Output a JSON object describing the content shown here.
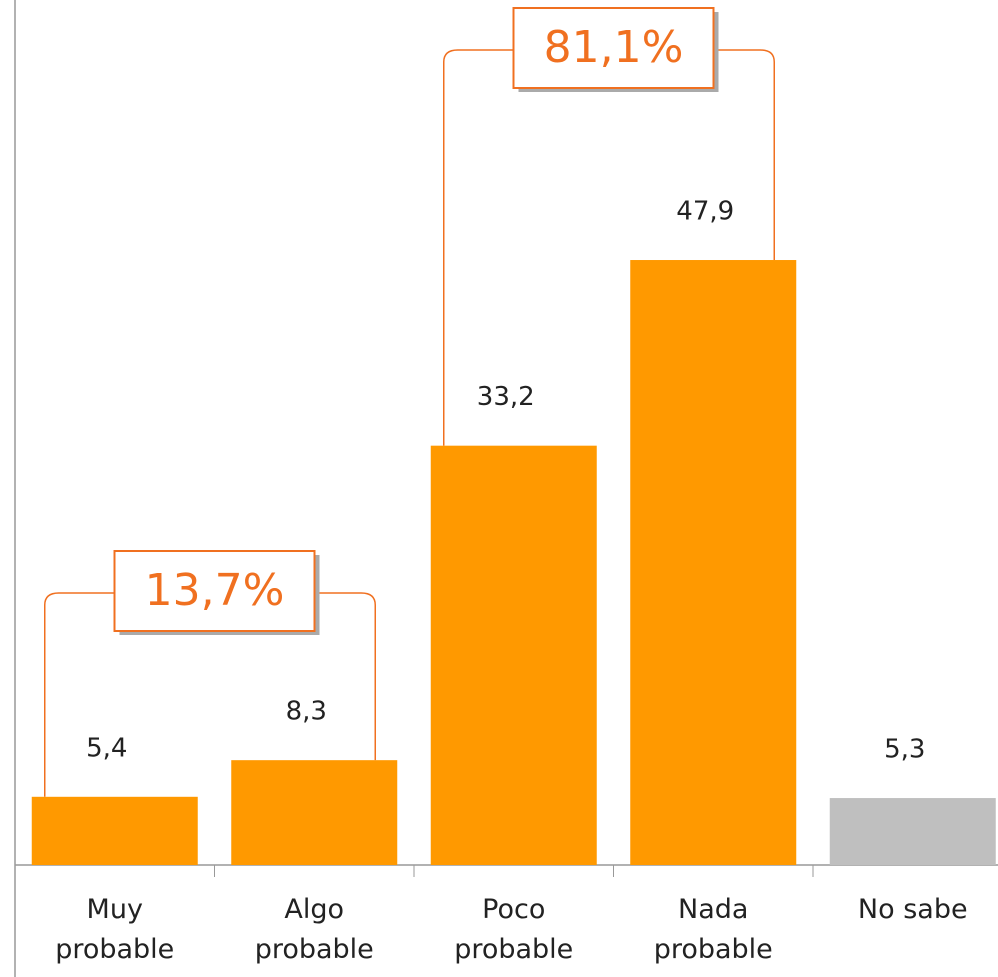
{
  "chart_data": {
    "type": "bar",
    "categories": [
      "Muy\nprobable",
      "Algo\nprobable",
      "Poco\nprobable",
      "Nada\nprobable",
      "No sabe"
    ],
    "values": [
      5.4,
      8.3,
      33.2,
      47.9,
      5.3
    ],
    "value_labels": [
      "5,4",
      "8,3",
      "33,2",
      "47,9",
      "5,3"
    ],
    "colors": [
      "#ff9900",
      "#ff9900",
      "#ff9900",
      "#ff9900",
      "#bfbfbf"
    ],
    "annotations": [
      {
        "value": 13.7,
        "label": "13,7%"
      },
      {
        "value": 81.1,
        "label": "81,1%"
      }
    ]
  }
}
